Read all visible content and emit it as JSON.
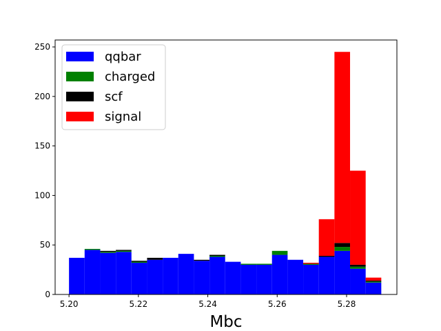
{
  "chart_data": {
    "type": "bar",
    "stacked": true,
    "histogram": true,
    "xlabel": "Mbc",
    "ylabel": "",
    "title": "",
    "xlim": [
      5.196,
      5.2945
    ],
    "ylim": [
      0,
      257
    ],
    "bin_edges": [
      5.2,
      5.2045,
      5.209,
      5.2135,
      5.218,
      5.2225,
      5.227,
      5.2315,
      5.236,
      5.2405,
      5.245,
      5.2495,
      5.254,
      5.2585,
      5.263,
      5.2675,
      5.272,
      5.2765,
      5.281,
      5.2855,
      5.29
    ],
    "xticks": [
      "5.20",
      "5.22",
      "5.24",
      "5.26",
      "5.28"
    ],
    "xtick_values": [
      5.2,
      5.22,
      5.24,
      5.26,
      5.28
    ],
    "yticks": [
      "0",
      "50",
      "100",
      "150",
      "200",
      "250"
    ],
    "ytick_values": [
      0,
      50,
      100,
      150,
      200,
      250
    ],
    "legend_position": "top-left",
    "series": [
      {
        "name": "qqbar",
        "color": "#0000ff",
        "values": [
          37,
          45,
          42,
          43,
          32,
          35,
          37,
          41,
          34,
          38,
          33,
          30,
          30,
          40,
          35,
          30,
          38,
          44,
          26,
          12
        ]
      },
      {
        "name": "charged",
        "color": "#008000",
        "values": [
          0,
          1,
          1,
          1,
          1,
          0,
          0,
          0,
          0,
          1,
          0,
          1,
          1,
          4,
          0,
          1,
          0,
          4,
          2,
          1
        ]
      },
      {
        "name": "scf",
        "color": "#000000",
        "values": [
          0,
          0,
          1,
          1,
          1,
          2,
          0,
          0,
          1,
          1,
          0,
          0,
          0,
          0,
          0,
          0,
          1,
          4,
          2,
          1
        ]
      },
      {
        "name": "signal",
        "color": "#ff0000",
        "values": [
          0,
          0,
          0,
          0,
          0,
          0,
          0,
          0,
          0,
          0,
          0,
          0,
          0,
          0,
          0,
          1,
          37,
          193,
          95,
          3
        ]
      }
    ]
  }
}
